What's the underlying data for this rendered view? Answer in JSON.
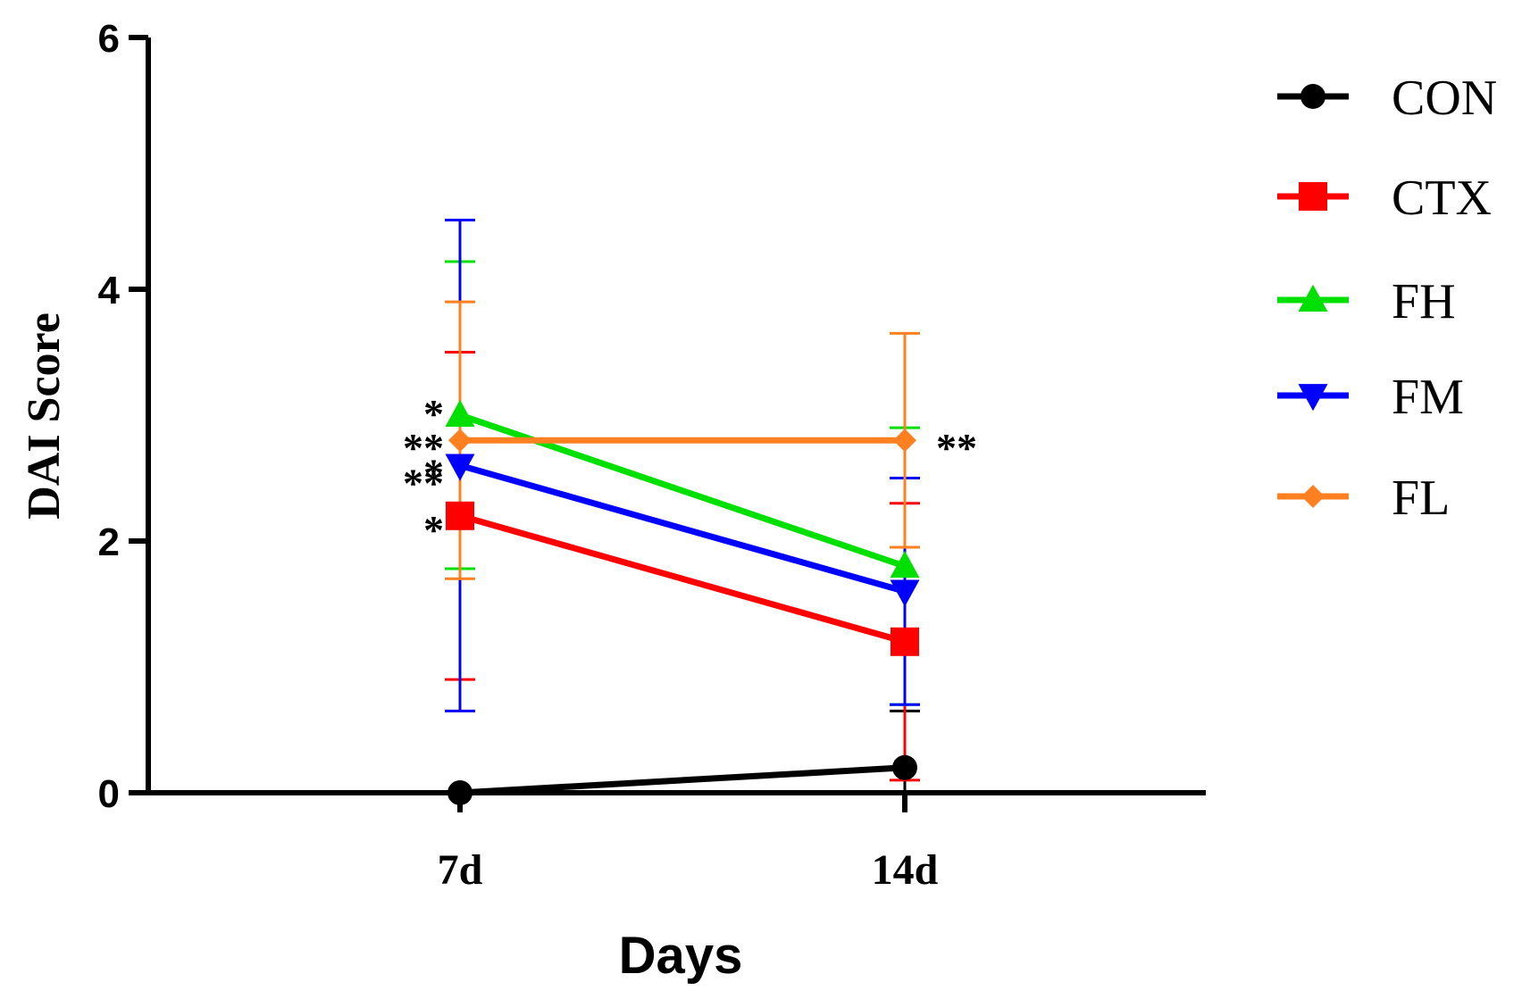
{
  "chart_data": {
    "type": "line",
    "title": "",
    "xlabel": "Days",
    "ylabel": "DAI Score",
    "categories": [
      "7d",
      "14d"
    ],
    "ylim": [
      0,
      6
    ],
    "yticks": [
      0,
      2,
      4,
      6
    ],
    "grid": false,
    "legend_position": "right",
    "series": [
      {
        "name": "CON",
        "color": "#000000",
        "marker": "circle",
        "values": [
          0.0,
          0.2
        ],
        "error": [
          0.0,
          0.45
        ]
      },
      {
        "name": "CTX",
        "color": "#ff0000",
        "marker": "square",
        "values": [
          2.2,
          1.2
        ],
        "error": [
          1.3,
          1.1
        ]
      },
      {
        "name": "FH",
        "color": "#00e000",
        "marker": "triangle-up",
        "values": [
          3.0,
          1.8
        ],
        "error": [
          1.22,
          1.1
        ]
      },
      {
        "name": "FM",
        "color": "#0000ff",
        "marker": "triangle-down",
        "values": [
          2.6,
          1.6
        ],
        "error": [
          1.95,
          0.9
        ]
      },
      {
        "name": "FL",
        "color": "#ff8020",
        "marker": "diamond",
        "values": [
          2.8,
          2.8
        ],
        "error": [
          1.1,
          0.85
        ]
      }
    ],
    "annotations": [
      {
        "category": "7d",
        "text": "*",
        "y": 3.07
      },
      {
        "category": "7d",
        "text": "**",
        "y": 2.8
      },
      {
        "category": "7d",
        "text": "*",
        "y": 2.6
      },
      {
        "category": "7d",
        "text": "**",
        "y": 2.52
      },
      {
        "category": "7d",
        "text": "*",
        "y": 2.15
      },
      {
        "category": "14d",
        "text": "**",
        "y": 2.8
      }
    ]
  }
}
